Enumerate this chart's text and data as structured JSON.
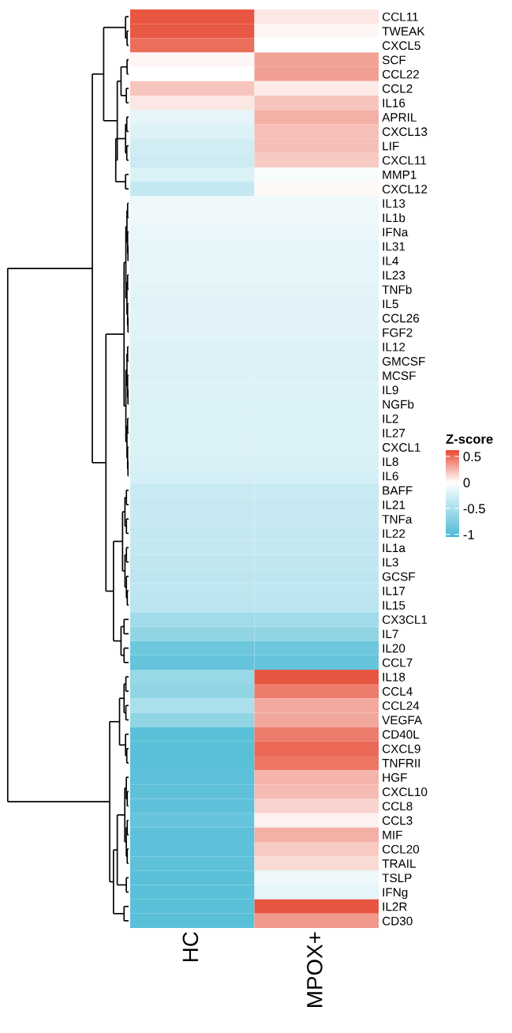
{
  "chart_data": {
    "type": "heatmap",
    "categories": [
      "HC",
      "MPOX+"
    ],
    "y_categories": [
      "CCL11",
      "TWEAK",
      "CXCL5",
      "SCF",
      "CCL22",
      "CCL2",
      "IL16",
      "APRIL",
      "CXCL13",
      "LIF",
      "CXCL11",
      "MMP1",
      "CXCL12",
      "IL13",
      "IL1b",
      "IFNa",
      "IL31",
      "IL4",
      "IL23",
      "TNFb",
      "IL5",
      "CCL26",
      "FGF2",
      "IL12",
      "GMCSF",
      "MCSF",
      "IL9",
      "NGFb",
      "IL2",
      "IL27",
      "CXCL1",
      "IL8",
      "IL6",
      "BAFF",
      "IL21",
      "TNFa",
      "IL22",
      "IL1a",
      "IL3",
      "GCSF",
      "IL17",
      "IL15",
      "CX3CL1",
      "IL7",
      "IL20",
      "CCL7",
      "IL18",
      "CCL4",
      "CCL24",
      "VEGFA",
      "CD40L",
      "CXCL9",
      "TNFRII",
      "HGF",
      "CXCL10",
      "CCL8",
      "CCL3",
      "MIF",
      "CCL20",
      "TRAIL",
      "TSLP",
      "IFNg",
      "IL2R",
      "CD30"
    ],
    "cells": [
      [
        0.58,
        0.08
      ],
      [
        0.57,
        0.03
      ],
      [
        0.5,
        0.0
      ],
      [
        0.03,
        0.32
      ],
      [
        0.0,
        0.33
      ],
      [
        0.2,
        0.07
      ],
      [
        0.08,
        0.2
      ],
      [
        -0.15,
        0.27
      ],
      [
        -0.2,
        0.22
      ],
      [
        -0.28,
        0.22
      ],
      [
        -0.3,
        0.18
      ],
      [
        -0.22,
        -0.05
      ],
      [
        -0.35,
        0.02
      ],
      [
        -0.1,
        -0.1
      ],
      [
        -0.1,
        -0.1
      ],
      [
        -0.13,
        -0.13
      ],
      [
        -0.15,
        -0.15
      ],
      [
        -0.15,
        -0.15
      ],
      [
        -0.15,
        -0.15
      ],
      [
        -0.17,
        -0.17
      ],
      [
        -0.18,
        -0.18
      ],
      [
        -0.18,
        -0.18
      ],
      [
        -0.18,
        -0.18
      ],
      [
        -0.2,
        -0.2
      ],
      [
        -0.2,
        -0.2
      ],
      [
        -0.2,
        -0.2
      ],
      [
        -0.2,
        -0.2
      ],
      [
        -0.22,
        -0.22
      ],
      [
        -0.22,
        -0.22
      ],
      [
        -0.22,
        -0.22
      ],
      [
        -0.22,
        -0.22
      ],
      [
        -0.23,
        -0.23
      ],
      [
        -0.25,
        -0.25
      ],
      [
        -0.32,
        -0.32
      ],
      [
        -0.33,
        -0.33
      ],
      [
        -0.33,
        -0.33
      ],
      [
        -0.35,
        -0.35
      ],
      [
        -0.35,
        -0.35
      ],
      [
        -0.37,
        -0.37
      ],
      [
        -0.38,
        -0.38
      ],
      [
        -0.38,
        -0.38
      ],
      [
        -0.4,
        -0.4
      ],
      [
        -0.55,
        -0.55
      ],
      [
        -0.65,
        -0.65
      ],
      [
        -0.85,
        -0.85
      ],
      [
        -0.9,
        -0.9
      ],
      [
        -0.6,
        0.58
      ],
      [
        -0.65,
        0.45
      ],
      [
        -0.5,
        0.3
      ],
      [
        -0.65,
        0.3
      ],
      [
        -0.97,
        0.45
      ],
      [
        -0.97,
        0.52
      ],
      [
        -0.97,
        0.47
      ],
      [
        -0.95,
        0.25
      ],
      [
        -0.95,
        0.23
      ],
      [
        -0.95,
        0.15
      ],
      [
        -0.9,
        0.04
      ],
      [
        -0.95,
        0.27
      ],
      [
        -0.95,
        0.18
      ],
      [
        -0.95,
        0.13
      ],
      [
        -0.97,
        -0.1
      ],
      [
        -0.97,
        -0.15
      ],
      [
        -0.97,
        0.58
      ],
      [
        -0.97,
        0.35
      ]
    ],
    "clim": [
      -1.05,
      0.62
    ],
    "cticks": [
      0.5,
      0,
      -0.5,
      -1
    ],
    "clabel": "Z-score"
  }
}
